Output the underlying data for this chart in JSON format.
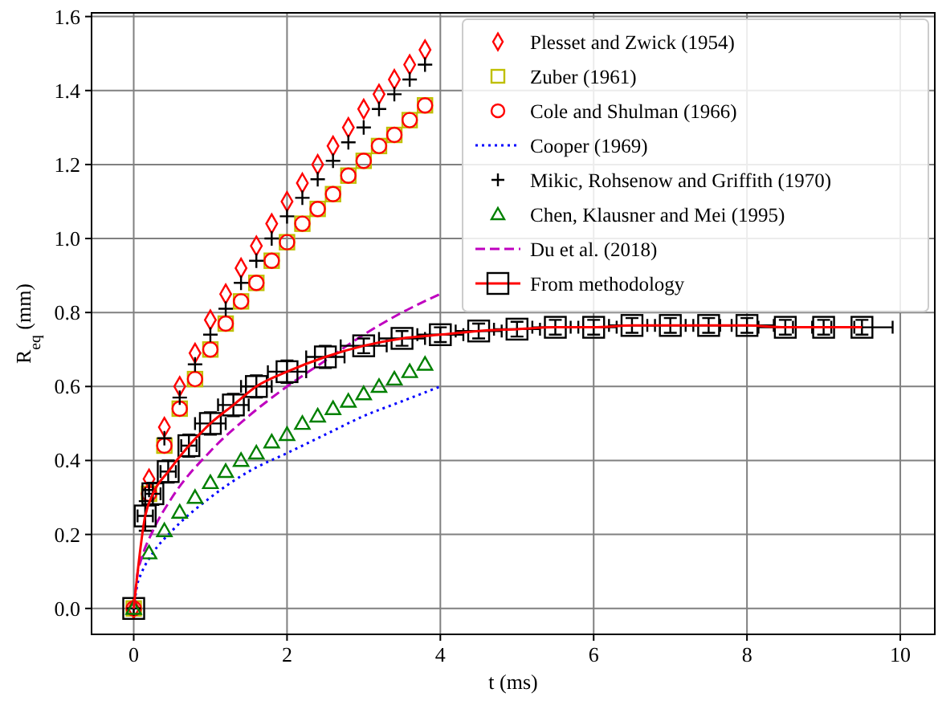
{
  "chart_data": {
    "type": "scatter",
    "xlabel": "t (ms)",
    "ylabel": "R$_{eq}$ (mm)",
    "xlim": [
      -0.55,
      10.45
    ],
    "ylim": [
      -0.07,
      1.61
    ],
    "xticks": [
      0,
      2,
      4,
      6,
      8,
      10
    ],
    "yticks": [
      {
        "value": 0,
        "label": "0.0"
      },
      {
        "value": 0.2,
        "label": "0.2"
      },
      {
        "value": 0.4,
        "label": "0.4"
      },
      {
        "value": 0.6,
        "label": "0.6"
      },
      {
        "value": 0.8,
        "label": "0.8"
      },
      {
        "value": 1,
        "label": "1.0"
      },
      {
        "value": 1.2,
        "label": "1.2"
      },
      {
        "value": 1.4,
        "label": "1.4"
      },
      {
        "value": 1.6,
        "label": "1.6"
      }
    ],
    "grid": true,
    "legend": "top right",
    "series": [
      {
        "name": "Plesset and Zwick (1954)",
        "marker": "diamond",
        "color": "#ff0000",
        "x": [
          0,
          0.2,
          0.4,
          0.6,
          0.8,
          1,
          1.2,
          1.4,
          1.6,
          1.8,
          2,
          2.2,
          2.4,
          2.6,
          2.8,
          3,
          3.2,
          3.4,
          3.6,
          3.8
        ],
        "values": [
          0,
          0.35,
          0.49,
          0.6,
          0.69,
          0.78,
          0.85,
          0.92,
          0.98,
          1.04,
          1.1,
          1.15,
          1.2,
          1.25,
          1.3,
          1.35,
          1.39,
          1.43,
          1.47,
          1.51
        ]
      },
      {
        "name": "Zuber (1961)",
        "marker": "square",
        "color": "#bfbf00",
        "x": [
          0,
          0.2,
          0.4,
          0.6,
          0.8,
          1,
          1.2,
          1.4,
          1.6,
          1.8,
          2,
          2.2,
          2.4,
          2.6,
          2.8,
          3,
          3.2,
          3.4,
          3.6,
          3.8
        ],
        "values": [
          0,
          0.31,
          0.44,
          0.54,
          0.62,
          0.7,
          0.77,
          0.83,
          0.88,
          0.94,
          0.99,
          1.04,
          1.08,
          1.12,
          1.17,
          1.21,
          1.25,
          1.28,
          1.32,
          1.36
        ]
      },
      {
        "name": "Cole and Shulman (1966)",
        "marker": "circle",
        "color": "#ff0000",
        "x": [
          0,
          0.2,
          0.4,
          0.6,
          0.8,
          1,
          1.2,
          1.4,
          1.6,
          1.8,
          2,
          2.2,
          2.4,
          2.6,
          2.8,
          3,
          3.2,
          3.4,
          3.6,
          3.8
        ],
        "values": [
          0,
          0.31,
          0.44,
          0.54,
          0.62,
          0.7,
          0.77,
          0.83,
          0.88,
          0.94,
          0.99,
          1.04,
          1.08,
          1.12,
          1.17,
          1.21,
          1.25,
          1.28,
          1.32,
          1.36
        ]
      },
      {
        "name": "Cooper (1969)",
        "type": "line",
        "line_style": "dotted",
        "marker": "none",
        "color": "#0000ff",
        "x": [
          0,
          0.05,
          0.1,
          0.25,
          0.5,
          1,
          1.5,
          2,
          2.5,
          3,
          3.5,
          4
        ],
        "values": [
          0,
          0.067,
          0.095,
          0.15,
          0.21,
          0.3,
          0.37,
          0.42,
          0.47,
          0.52,
          0.56,
          0.6
        ]
      },
      {
        "name": "Mikic, Rohsenow and Griffith (1970)",
        "marker": "cross",
        "color": "#000000",
        "x": [
          0,
          0.2,
          0.4,
          0.6,
          0.8,
          1,
          1.2,
          1.4,
          1.6,
          1.8,
          2,
          2.2,
          2.4,
          2.6,
          2.8,
          3,
          3.2,
          3.4,
          3.6,
          3.8
        ],
        "values": [
          0,
          0.32,
          0.46,
          0.57,
          0.66,
          0.74,
          0.81,
          0.88,
          0.94,
          1,
          1.06,
          1.11,
          1.16,
          1.21,
          1.26,
          1.3,
          1.35,
          1.39,
          1.43,
          1.47
        ]
      },
      {
        "name": "Chen, Klausner and Mei (1995)",
        "marker": "triangle",
        "color": "#008000",
        "x": [
          0,
          0.2,
          0.4,
          0.6,
          0.8,
          1,
          1.2,
          1.4,
          1.6,
          1.8,
          2,
          2.2,
          2.4,
          2.6,
          2.8,
          3,
          3.2,
          3.4,
          3.6,
          3.8
        ],
        "values": [
          0,
          0.15,
          0.21,
          0.26,
          0.3,
          0.34,
          0.37,
          0.4,
          0.42,
          0.45,
          0.47,
          0.5,
          0.52,
          0.54,
          0.56,
          0.58,
          0.6,
          0.62,
          0.64,
          0.66
        ]
      },
      {
        "name": "Du et al. (2018)",
        "type": "line",
        "line_style": "dashed",
        "marker": "none",
        "color": "#bf00bf",
        "x": [
          0,
          0.05,
          0.1,
          0.25,
          0.5,
          1,
          1.5,
          2,
          2.5,
          3,
          3.5,
          4
        ],
        "values": [
          0,
          0.095,
          0.134,
          0.21,
          0.3,
          0.425,
          0.52,
          0.6,
          0.67,
          0.74,
          0.8,
          0.85
        ]
      },
      {
        "name": "From methodology",
        "type": "line",
        "line_style": "solid",
        "marker": "square",
        "color": "#ff0000",
        "x": [
          0,
          0.15,
          0.25,
          0.45,
          0.72,
          1,
          1.3,
          1.6,
          2,
          2.5,
          3,
          3.5,
          4,
          4.5,
          5,
          5.5,
          6,
          6.5,
          7,
          7.5,
          8,
          8.5,
          9,
          9.5
        ],
        "values": [
          0,
          0.25,
          0.31,
          0.37,
          0.44,
          0.5,
          0.55,
          0.6,
          0.64,
          0.68,
          0.71,
          0.73,
          0.74,
          0.75,
          0.755,
          0.76,
          0.76,
          0.765,
          0.765,
          0.765,
          0.765,
          0.76,
          0.76,
          0.76
        ],
        "errors": [
          null,
          0.04,
          0.03,
          0.03,
          0.03,
          0.03,
          0.03,
          0.03,
          0.03,
          0.03,
          0.02,
          0.02,
          0.02,
          0.02,
          0.02,
          0.02,
          0.02,
          0.02,
          0.02,
          0.02,
          0.02,
          0.02,
          0.02,
          0.02
        ],
        "xerrors": [
          null,
          0.1,
          0.1,
          0.1,
          0.1,
          0.2,
          0.2,
          0.2,
          0.25,
          0.25,
          0.3,
          0.3,
          0.3,
          0.3,
          0.3,
          0.3,
          0.3,
          0.3,
          0.3,
          0.3,
          0.35,
          0.35,
          0.4,
          0.4
        ]
      }
    ]
  }
}
